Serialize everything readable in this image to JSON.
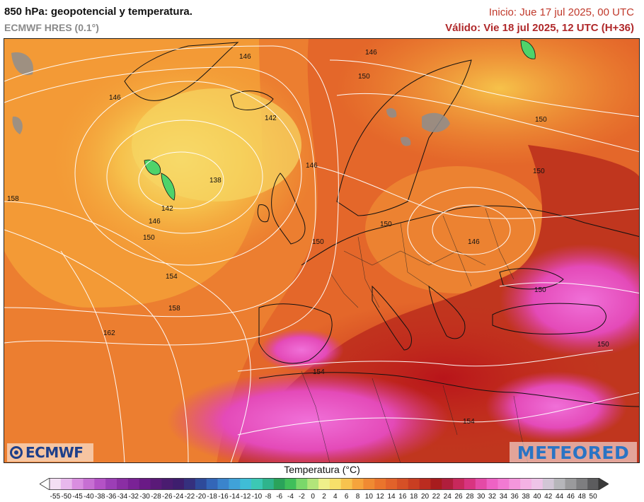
{
  "header": {
    "title": "850 hPa: geopotencial y temperatura.",
    "model": "ECMWF HRES (0.1°)",
    "init": "Inicio: Jue 17 jul 2025, 00 UTC",
    "valid": "Válido: Vie 18 jul 2025, 12 UTC (H+36)"
  },
  "logos": {
    "left": "ECMWF",
    "right": "METEORED"
  },
  "map": {
    "contour_labels": [
      "146",
      "146",
      "142",
      "146",
      "138",
      "142",
      "146",
      "150",
      "154",
      "158",
      "162",
      "158",
      "150",
      "146",
      "150",
      "150",
      "150",
      "150",
      "146",
      "150",
      "150",
      "154",
      "154"
    ],
    "colors": {
      "cold_low": "#f6d35a",
      "mild": "#f5a83c",
      "warm": "#ee7a2a",
      "hot": "#d9501e",
      "very_hot": "#b51c1c",
      "extreme": "#e040c8",
      "land_rock": "#909090",
      "anomaly_green": "#4fd36a"
    }
  },
  "legend": {
    "title": "Temperatura (°C)",
    "ticks": [
      "-55",
      "-50",
      "-45",
      "-40",
      "-38",
      "-36",
      "-34",
      "-32",
      "-30",
      "-28",
      "-26",
      "-24",
      "-22",
      "-20",
      "-18",
      "-16",
      "-14",
      "-12",
      "-10",
      "-8",
      "-6",
      "-4",
      "-2",
      "0",
      "2",
      "4",
      "6",
      "8",
      "10",
      "12",
      "14",
      "16",
      "18",
      "20",
      "22",
      "24",
      "26",
      "28",
      "30",
      "32",
      "34",
      "36",
      "38",
      "40",
      "42",
      "44",
      "46",
      "48",
      "50"
    ],
    "colors": [
      "#f4dff4",
      "#e8b8ec",
      "#d98ee0",
      "#c76fd3",
      "#b452c6",
      "#9c3eb6",
      "#8a2ea4",
      "#7a2296",
      "#6a1a86",
      "#5a1a78",
      "#4a1c70",
      "#3e1e6e",
      "#35307e",
      "#2e4a9a",
      "#3366b8",
      "#3a84cc",
      "#40a2d8",
      "#3fbdd6",
      "#3cc8b4",
      "#2fb48c",
      "#2aa35a",
      "#3fbf5a",
      "#7ad86a",
      "#b2e57a",
      "#eef08a",
      "#f7e06a",
      "#f8c34e",
      "#f6a43c",
      "#f08a32",
      "#ea742c",
      "#e2622a",
      "#d65026",
      "#c93e22",
      "#bb2c20",
      "#a81c1e",
      "#b01e3c",
      "#c8285c",
      "#d83480",
      "#e44aa6",
      "#ee62c4",
      "#f27ad2",
      "#f496dc",
      "#f4b2e4",
      "#eec4e8",
      "#d2c6d6",
      "#b6b6ba",
      "#9a9a9c",
      "#7e7e80",
      "#5c5c5e"
    ]
  }
}
